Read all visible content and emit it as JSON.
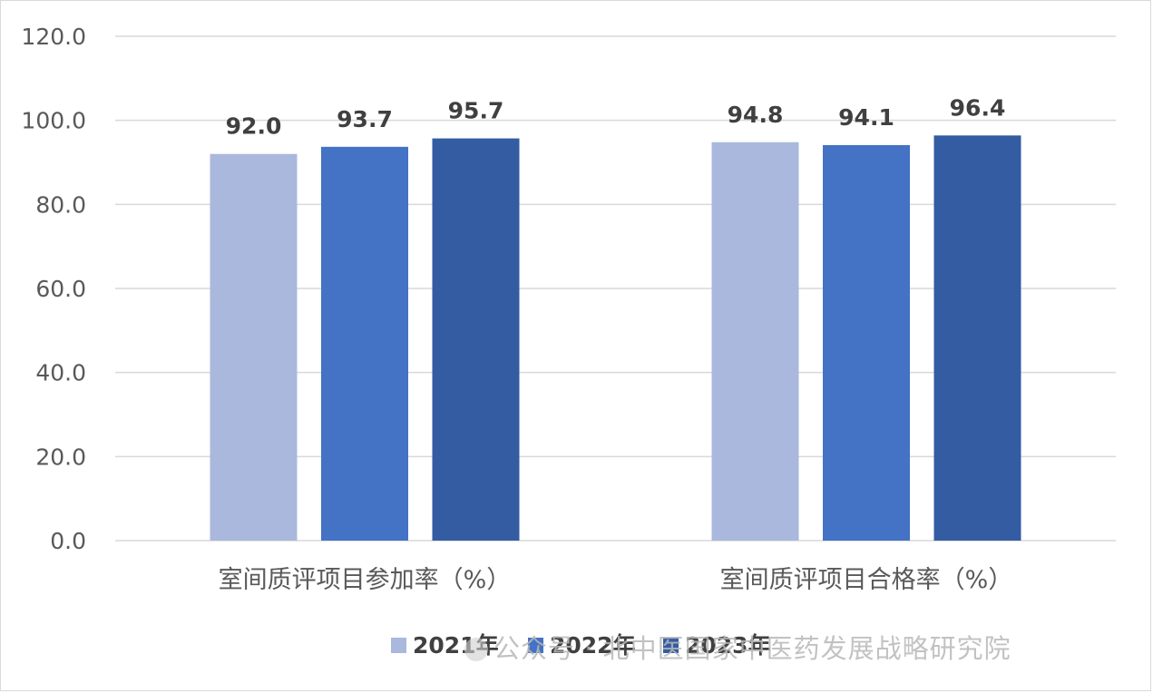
{
  "chart_data": {
    "type": "bar",
    "title": "",
    "xlabel": "",
    "ylabel": "",
    "categories": [
      "室间质评项目参加率（%）",
      "室间质评项目合格率（%）"
    ],
    "series": [
      {
        "name": "2021年",
        "values": [
          92.0,
          94.8
        ],
        "color": "#a9b8dc"
      },
      {
        "name": "2022年",
        "values": [
          93.7,
          94.1
        ],
        "color": "#4472c4"
      },
      {
        "name": "2023年",
        "values": [
          95.7,
          96.4
        ],
        "color": "#335ca3"
      }
    ],
    "ylim": [
      0,
      120
    ],
    "yticks": [
      "0.0",
      "20.0",
      "40.0",
      "60.0",
      "80.0",
      "100.0",
      "120.0"
    ],
    "data_labels": [
      [
        "92.0",
        "94.8"
      ],
      [
        "93.7",
        "94.1"
      ],
      [
        "95.7",
        "96.4"
      ]
    ],
    "grid": true,
    "legend": "bottom-right"
  },
  "watermark": {
    "text": "公众号 · 北中医国家中医药发展战略研究院"
  }
}
